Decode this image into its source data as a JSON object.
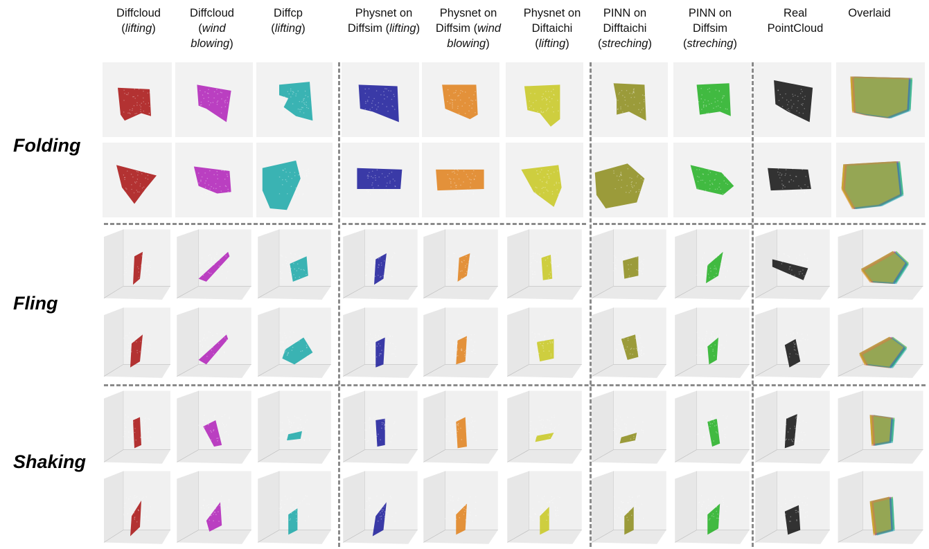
{
  "columns": [
    {
      "id": "diffcloud-lifting",
      "line1": "Diffcloud",
      "line2": "lifting",
      "line2_pre": "(",
      "line2_post": ")",
      "line3": "",
      "color": "#a81010"
    },
    {
      "id": "diffcloud-wind",
      "line1": "Diffcloud",
      "line2": "wind",
      "line2_pre": "(",
      "line2_post": "",
      "line3": "blowing",
      "line3_pre": "",
      "line3_post": ")",
      "color": "#b020b8"
    },
    {
      "id": "diffcp-lifting",
      "line1": "Diffcp",
      "line2": "lifting",
      "line2_pre": "(",
      "line2_post": ")",
      "line3": "",
      "color": "#1aa8a8"
    },
    {
      "id": "physnet-diffsim-lifting",
      "line1": "Physnet on",
      "line2": "lifting",
      "line2_pre": "Diffsim (",
      "line2_post": ")",
      "line3": "",
      "color": "#1a1a9a"
    },
    {
      "id": "physnet-diffsim-wind",
      "line1": "Physnet on",
      "line2": "wind",
      "line2_pre": "Diffsim (",
      "line2_post": "",
      "line3": "blowing",
      "line3_pre": "",
      "line3_post": ")",
      "color": "#e0801a"
    },
    {
      "id": "physnet-diftaichi-lifting",
      "line1": "Physnet on",
      "line2": "Diftaichi",
      "line2_pre": "",
      "line2_post": "",
      "line2_plain": true,
      "line3": "lifting",
      "line3_pre": "(",
      "line3_post": ")",
      "color": "#c8c820"
    },
    {
      "id": "pinn-difftaichi-streching",
      "line1": "PINN on",
      "line2": "Difftaichi",
      "line2_pre": "",
      "line2_post": "",
      "line2_plain": true,
      "line3": "streching",
      "line3_pre": "(",
      "line3_post": ")",
      "color": "#8c8c1a"
    },
    {
      "id": "pinn-diffsim-streching",
      "line1": "PINN on",
      "line2": "Diffsim",
      "line2_pre": "",
      "line2_post": "",
      "line2_plain": true,
      "line3": "streching",
      "line3_pre": "(",
      "line3_post": ")",
      "color": "#22b022"
    },
    {
      "id": "real-pointcloud",
      "line1": "Real",
      "line2": "PointCloud",
      "line2_pre": "",
      "line2_post": "",
      "line2_plain": true,
      "line3": "",
      "color": "#111111"
    },
    {
      "id": "overlaid",
      "line1": "Overlaid",
      "line2": "",
      "line3": "",
      "color": "overlay"
    }
  ],
  "rows": [
    {
      "label": "Folding"
    },
    {
      "label": "Fling"
    },
    {
      "label": "Shaking"
    }
  ],
  "colors": {
    "overlay": [
      "#8a1010",
      "#1a1a9a",
      "#22b022",
      "#e0801a",
      "#b020b8",
      "#1aa8a8",
      "#c8c820"
    ],
    "divider": "#8a8a8a",
    "panel_bg": "#f2f2f2"
  }
}
